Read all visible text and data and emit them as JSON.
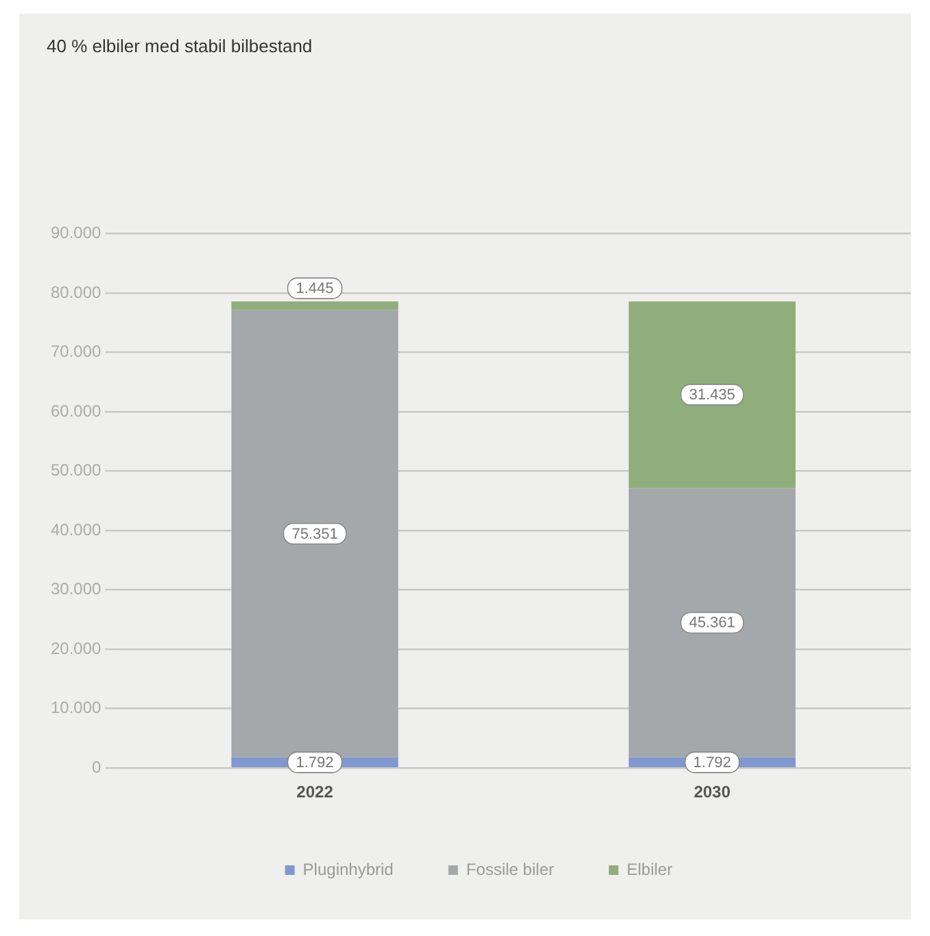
{
  "chart_data": {
    "type": "bar",
    "title": "40 % elbiler med stabil bilbestand",
    "categories": [
      "2022",
      "2030"
    ],
    "series": [
      {
        "name": "Pluginhybrid",
        "color": "#7f98cf",
        "values": [
          1792,
          1792
        ],
        "value_labels": [
          "1.792",
          "1.792"
        ]
      },
      {
        "name": "Fossile biler",
        "color": "#a5a8ab",
        "values": [
          75351,
          45361
        ],
        "value_labels": [
          "75.351",
          "45.361"
        ]
      },
      {
        "name": "Elbiler",
        "color": "#8fae7b",
        "values": [
          1445,
          31435
        ],
        "value_labels": [
          "1.445",
          "31.435"
        ]
      }
    ],
    "stacked": true,
    "ylim": [
      0,
      90000
    ],
    "yticks": [
      {
        "value": 0,
        "label": "0"
      },
      {
        "value": 10000,
        "label": "10.000"
      },
      {
        "value": 20000,
        "label": "20.000"
      },
      {
        "value": 30000,
        "label": "30.000"
      },
      {
        "value": 40000,
        "label": "40.000"
      },
      {
        "value": 50000,
        "label": "50.000"
      },
      {
        "value": 60000,
        "label": "60.000"
      },
      {
        "value": 70000,
        "label": "70.000"
      },
      {
        "value": 80000,
        "label": "80.000"
      },
      {
        "value": 90000,
        "label": "90.000"
      }
    ],
    "grid": "y",
    "legend": "bottom"
  }
}
